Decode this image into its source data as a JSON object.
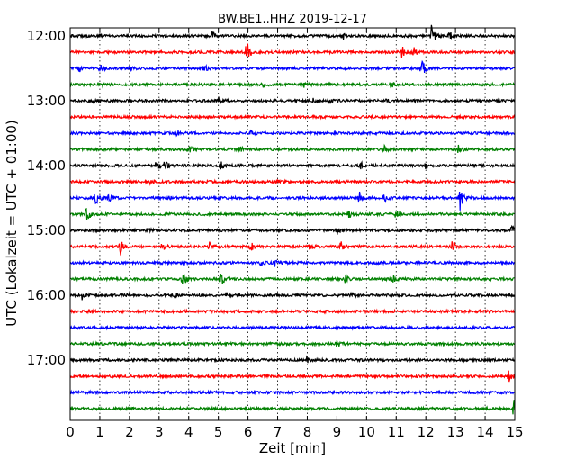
{
  "chart_data": {
    "type": "line",
    "title": "BW.BE1..HHZ 2019-12-17",
    "xlabel": "Zeit  [min]",
    "ylabel": "UTC (Lokalzeit = UTC + 01:00)",
    "xlim": [
      0,
      15
    ],
    "x_ticks": [
      "0",
      "1",
      "2",
      "3",
      "4",
      "5",
      "6",
      "7",
      "8",
      "9",
      "10",
      "11",
      "12",
      "13",
      "14",
      "15"
    ],
    "y_ticks": [
      "12:00",
      "13:00",
      "14:00",
      "15:00",
      "16:00",
      "17:00"
    ],
    "grid": "vertical dotted",
    "trace_interval_minutes": 15,
    "color_cycle": [
      "#000000",
      "#ff0000",
      "#0000ff",
      "#008000"
    ],
    "series": [
      {
        "start": "12:00",
        "events": [
          [
            0.9,
            0.3
          ],
          [
            4.8,
            0.3
          ],
          [
            9.2,
            0.25
          ],
          [
            12.2,
            1.0
          ],
          [
            12.8,
            0.3
          ]
        ]
      },
      {
        "start": "12:15",
        "events": [
          [
            5.95,
            1.0
          ],
          [
            11.2,
            0.45
          ],
          [
            11.6,
            0.3
          ]
        ]
      },
      {
        "start": "12:30",
        "events": [
          [
            0.3,
            0.3
          ],
          [
            1.0,
            0.3
          ],
          [
            2.0,
            0.25
          ],
          [
            4.5,
            0.3
          ],
          [
            11.85,
            0.8
          ]
        ]
      },
      {
        "start": "12:45",
        "events": [
          [
            1.1,
            0.2
          ],
          [
            6.5,
            0.25
          ],
          [
            7.9,
            0.2
          ],
          [
            10.8,
            0.3
          ]
        ]
      },
      {
        "start": "13:00",
        "events": [
          [
            0.8,
            0.2
          ],
          [
            5.0,
            0.25
          ],
          [
            8.2,
            0.2
          ],
          [
            8.7,
            0.2
          ],
          [
            10.7,
            0.2
          ]
        ]
      },
      {
        "start": "13:15",
        "events": []
      },
      {
        "start": "13:30",
        "events": [
          [
            3.6,
            0.25
          ],
          [
            6.1,
            0.2
          ]
        ]
      },
      {
        "start": "13:45",
        "events": [
          [
            4.0,
            0.3
          ],
          [
            5.7,
            0.3
          ],
          [
            10.6,
            0.25
          ],
          [
            13.1,
            0.3
          ]
        ]
      },
      {
        "start": "14:00",
        "events": [
          [
            2.9,
            0.55
          ],
          [
            3.2,
            0.45
          ],
          [
            5.05,
            0.4
          ],
          [
            9.8,
            0.3
          ],
          [
            12.0,
            0.2
          ]
        ]
      },
      {
        "start": "14:15",
        "events": [
          [
            2.7,
            0.2
          ],
          [
            7.0,
            0.2
          ]
        ]
      },
      {
        "start": "14:30",
        "events": [
          [
            0.85,
            0.7
          ],
          [
            1.3,
            0.25
          ],
          [
            3.3,
            0.25
          ],
          [
            9.75,
            0.6
          ],
          [
            10.6,
            0.3
          ],
          [
            13.15,
            1.0
          ]
        ]
      },
      {
        "start": "14:45",
        "events": [
          [
            0.55,
            0.7
          ],
          [
            9.4,
            0.25
          ],
          [
            11.0,
            0.35
          ]
        ]
      },
      {
        "start": "15:00",
        "events": [
          [
            2.6,
            0.2
          ],
          [
            9.0,
            0.2
          ],
          [
            14.9,
            0.4
          ]
        ]
      },
      {
        "start": "15:15",
        "events": [
          [
            1.7,
            0.5
          ],
          [
            3.1,
            0.3
          ],
          [
            4.7,
            0.3
          ],
          [
            6.1,
            0.3
          ],
          [
            8.1,
            0.3
          ],
          [
            9.1,
            0.55
          ],
          [
            12.9,
            0.55
          ]
        ]
      },
      {
        "start": "15:30",
        "events": [
          [
            6.4,
            0.25
          ],
          [
            6.9,
            0.25
          ]
        ]
      },
      {
        "start": "15:45",
        "events": [
          [
            3.8,
            0.85
          ],
          [
            5.05,
            0.75
          ],
          [
            9.3,
            0.35
          ],
          [
            10.9,
            0.4
          ]
        ]
      },
      {
        "start": "16:00",
        "events": [
          [
            0.4,
            0.3
          ],
          [
            3.5,
            0.2
          ],
          [
            5.3,
            0.2
          ],
          [
            9.5,
            0.2
          ]
        ]
      },
      {
        "start": "16:15",
        "events": []
      },
      {
        "start": "16:30",
        "events": []
      },
      {
        "start": "16:45",
        "events": [
          [
            9.0,
            0.35
          ]
        ]
      },
      {
        "start": "17:00",
        "events": [
          [
            8.0,
            0.2
          ]
        ]
      },
      {
        "start": "17:15",
        "events": [
          [
            14.8,
            0.5
          ]
        ]
      },
      {
        "start": "17:30",
        "events": []
      },
      {
        "start": "17:45",
        "events": [
          [
            14.98,
            1.2
          ]
        ]
      }
    ]
  }
}
